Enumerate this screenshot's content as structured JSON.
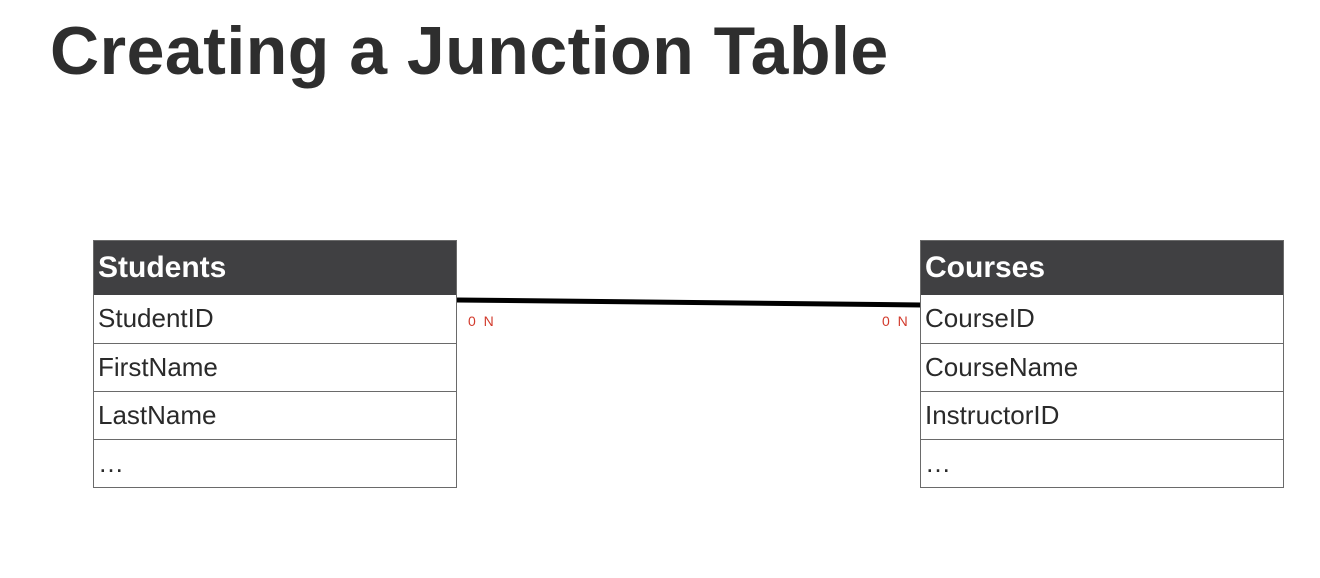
{
  "title": "Creating a Junction Table",
  "entities": [
    {
      "name": "Students",
      "fields": [
        "StudentID",
        "FirstName",
        "LastName",
        "…"
      ]
    },
    {
      "name": "Courses",
      "fields": [
        "CourseID",
        "CourseName",
        "InstructorID",
        "…"
      ]
    }
  ],
  "relationship": {
    "left_cardinality": "0 N",
    "right_cardinality": "0 N",
    "line_color": "#000000",
    "cardinality_color": "#d23a2c"
  }
}
